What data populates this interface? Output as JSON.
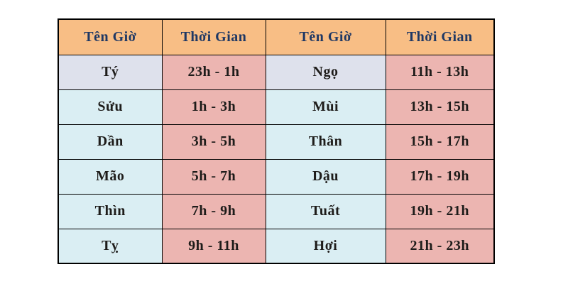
{
  "title": "Vietnamese zodiac hours table",
  "colors": {
    "header-bg": "#f8be85",
    "header-text": "#1f3864",
    "row1-name-bg": "#dee1ec",
    "name-bg": "#daeef3",
    "time-bg": "#ecb5b1",
    "cell-text": "#1e1c1a",
    "border": "#000000"
  },
  "header": [
    "Tên Giờ",
    "Thời Gian",
    "Tên Giờ",
    "Thời Gian"
  ],
  "rows": [
    [
      "Tý",
      "23h - 1h",
      "Ngọ",
      "11h - 13h"
    ],
    [
      "Sửu",
      "1h - 3h",
      "Mùi",
      "13h - 15h"
    ],
    [
      "Dần",
      "3h - 5h",
      "Thân",
      "15h - 17h"
    ],
    [
      "Mão",
      "5h - 7h",
      "Dậu",
      "17h - 19h"
    ],
    [
      "Thìn",
      "7h - 9h",
      "Tuất",
      "19h - 21h"
    ],
    [
      "Tỵ",
      "9h - 11h",
      "Hợi",
      "21h - 23h"
    ]
  ],
  "chart_data": {
    "type": "table",
    "title": "Vietnamese zodiac hour names and time ranges",
    "columns": [
      "Tên Giờ",
      "Thời Gian",
      "Tên Giờ",
      "Thời Gian"
    ],
    "rows": [
      [
        "Tý",
        "23h - 1h",
        "Ngọ",
        "11h - 13h"
      ],
      [
        "Sửu",
        "1h - 3h",
        "Mùi",
        "13h - 15h"
      ],
      [
        "Dần",
        "3h - 5h",
        "Thân",
        "15h - 17h"
      ],
      [
        "Mão",
        "5h - 7h",
        "Dậu",
        "17h - 19h"
      ],
      [
        "Thìn",
        "7h - 9h",
        "Tuất",
        "19h - 21h"
      ],
      [
        "Tỵ",
        "9h - 11h",
        "Hợi",
        "21h - 23h"
      ]
    ]
  }
}
